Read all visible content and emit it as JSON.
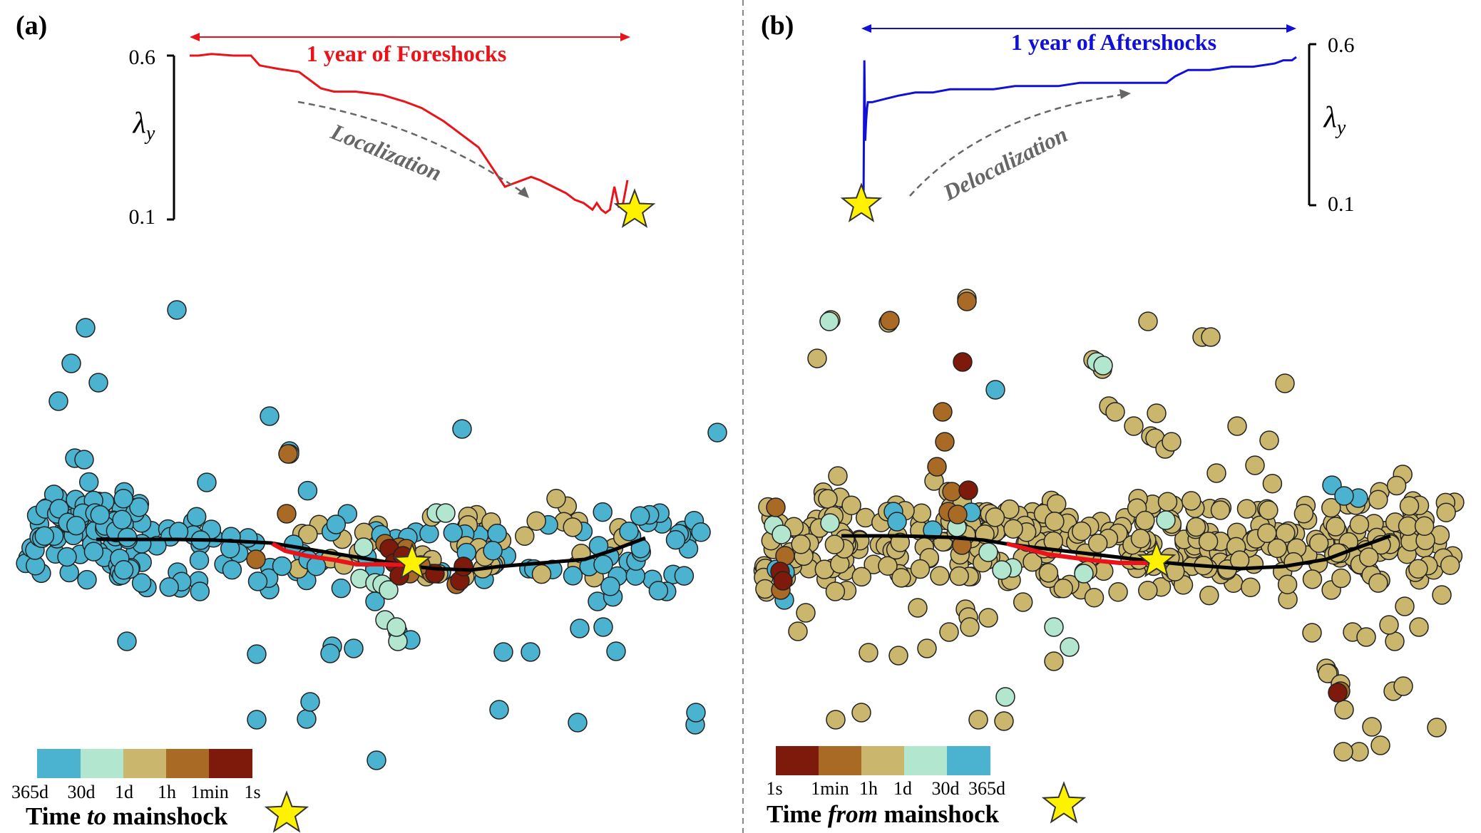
{
  "palette": {
    "cyan": "#4BB3CF",
    "mint": "#B2E6CF",
    "tan": "#CBB66D",
    "brown": "#A86A25",
    "darkred": "#7E1A0B",
    "red": "#E8141A",
    "blue": "#1010D6",
    "gray": "#666666",
    "star": "#FFF200"
  },
  "chart_data": [
    {
      "panel": "(a)",
      "type": "line",
      "title": "1 year of Foreshocks",
      "ylabel": "λy",
      "yticks": [
        "0.6",
        "0.1"
      ],
      "ylim": [
        0.1,
        0.6
      ],
      "annotation": "Localization",
      "series_color": "red",
      "x": [
        0,
        0.02,
        0.05,
        0.1,
        0.14,
        0.16,
        0.2,
        0.25,
        0.3,
        0.33,
        0.38,
        0.44,
        0.49,
        0.53,
        0.58,
        0.62,
        0.66,
        0.69,
        0.72,
        0.74,
        0.76,
        0.78,
        0.8,
        0.83,
        0.86,
        0.88,
        0.9,
        0.92,
        0.93,
        0.94,
        0.95,
        0.96,
        0.97,
        0.98,
        0.99,
        1.0
      ],
      "values": [
        0.6,
        0.6,
        0.605,
        0.6,
        0.6,
        0.57,
        0.56,
        0.55,
        0.5,
        0.49,
        0.49,
        0.48,
        0.46,
        0.44,
        0.4,
        0.36,
        0.32,
        0.26,
        0.2,
        0.21,
        0.22,
        0.23,
        0.22,
        0.2,
        0.18,
        0.16,
        0.15,
        0.13,
        0.15,
        0.13,
        0.12,
        0.13,
        0.2,
        0.14,
        0.15,
        0.22
      ]
    },
    {
      "panel": "(b)",
      "type": "line",
      "title": "1 year of Aftershocks",
      "ylabel": "λy",
      "yticks": [
        "0.6",
        "0.1"
      ],
      "ylim": [
        0.1,
        0.6
      ],
      "annotation": "Delocalization",
      "series_color": "blue",
      "x": [
        0,
        0.002,
        0.004,
        0.006,
        0.008,
        0.01,
        0.02,
        0.05,
        0.08,
        0.12,
        0.16,
        0.2,
        0.25,
        0.3,
        0.35,
        0.4,
        0.45,
        0.5,
        0.55,
        0.6,
        0.7,
        0.72,
        0.75,
        0.78,
        0.8,
        0.85,
        0.9,
        0.95,
        0.97,
        0.99,
        1.0
      ],
      "values": [
        0.1,
        0.55,
        0.3,
        0.36,
        0.4,
        0.42,
        0.42,
        0.43,
        0.44,
        0.45,
        0.45,
        0.46,
        0.46,
        0.46,
        0.47,
        0.47,
        0.47,
        0.48,
        0.48,
        0.48,
        0.48,
        0.5,
        0.52,
        0.52,
        0.52,
        0.53,
        0.53,
        0.54,
        0.55,
        0.55,
        0.56
      ]
    }
  ],
  "panels": {
    "a": {
      "label": "(a)",
      "legend_ticks": [
        "365d",
        "30d",
        "1d",
        "1h",
        "1min",
        "1s"
      ],
      "legend_title_pre": "Time ",
      "legend_title_em": "to",
      "legend_title_post": " mainshock"
    },
    "b": {
      "label": "(b)",
      "legend_ticks": [
        "1s",
        "1min",
        "1h",
        "1d",
        "30d",
        "365d"
      ],
      "legend_title_pre": "Time ",
      "legend_title_em": "from",
      "legend_title_post": " mainshock"
    }
  }
}
